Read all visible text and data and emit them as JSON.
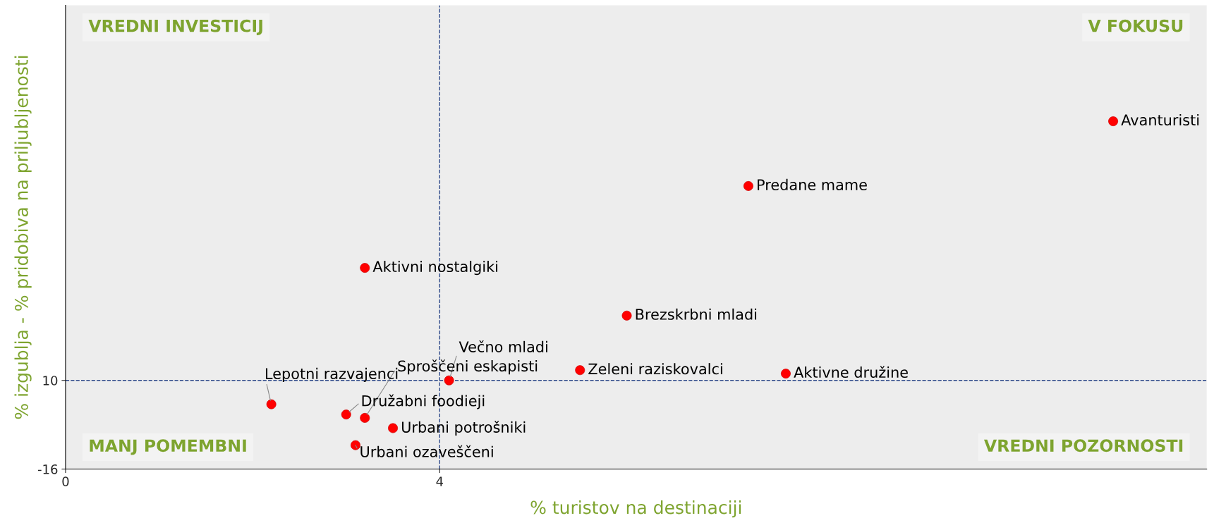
{
  "chart_data": {
    "type": "scatter",
    "xlabel": "% turistov na destinaciji",
    "ylabel": "% izgublja - % pridobiva na priljubljenosti",
    "series": [
      {
        "color": "#ff0000",
        "x": [
          11.2,
          7.3,
          3.2,
          6.0,
          5.5,
          7.7,
          4.1,
          3.2,
          2.2,
          3.0,
          3.5,
          3.1
        ],
        "values": [
          86,
          67,
          43,
          29,
          13,
          12,
          10,
          -1,
          3,
          0,
          -4,
          -9
        ]
      }
    ],
    "xlim": [
      0,
      12.2
    ],
    "ylim": [
      -16,
      120
    ],
    "xticks": [
      0,
      4
    ],
    "yticks": [
      -16,
      10
    ],
    "ref_lines": [
      {
        "axis": "x",
        "value": 4,
        "color": "#2f4a8a",
        "line_style": "dashed"
      },
      {
        "axis": "y",
        "value": 10,
        "color": "#2f4a8a",
        "line_style": "dashed"
      }
    ],
    "annotations": [
      "VREDNI INVESTICIJ",
      "V FOKUSU",
      "MANJ POMEMBNI",
      "VREDNI POZORNOSTI",
      {
        "text": "Avanturisti",
        "x": 11.2,
        "y": 86
      },
      {
        "text": "Predane mame",
        "x": 7.3,
        "y": 67
      },
      {
        "text": "Aktivni nostalgiki",
        "x": 3.2,
        "y": 43
      },
      {
        "text": "Brezskrbni mladi",
        "x": 6.0,
        "y": 29
      },
      {
        "text": "Zeleni raziskovalci",
        "x": 5.5,
        "y": 13
      },
      {
        "text": "Aktivne družine",
        "x": 7.7,
        "y": 12
      },
      {
        "text": "Večno mladi",
        "x": 4.1,
        "y": 10
      },
      {
        "text": "Sproščeni eskapisti",
        "x": 3.2,
        "y": -1
      },
      {
        "text": "Lepotni razvajenci",
        "x": 2.2,
        "y": 3
      },
      {
        "text": "Družabni foodieji",
        "x": 3.0,
        "y": 0
      },
      {
        "text": "Urbani potrošniki",
        "x": 3.5,
        "y": -4
      },
      {
        "text": "Urbani ozaveščeni",
        "x": 3.1,
        "y": -9
      }
    ],
    "marker": "circle",
    "grid": false,
    "legend": false
  }
}
